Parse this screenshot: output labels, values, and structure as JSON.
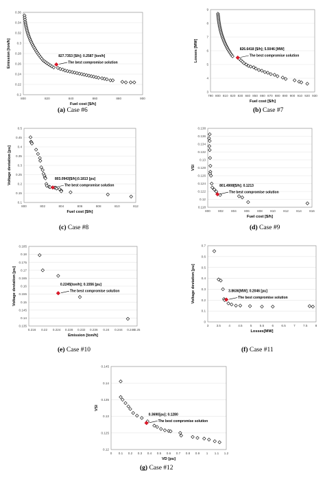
{
  "figures": [
    {
      "letter": "(a)",
      "caption": "Case #6"
    },
    {
      "letter": "(b)",
      "caption": "Case #7"
    },
    {
      "letter": "(c)",
      "caption": "Case #8"
    },
    {
      "letter": "(d)",
      "caption": "Case #9"
    },
    {
      "letter": "(e)",
      "caption": "Case #10"
    },
    {
      "letter": "(f)",
      "caption": "Case #11"
    },
    {
      "letter": "(g)",
      "caption": "Case #12"
    }
  ],
  "chart_data": [
    {
      "type": "scatter",
      "xlabel": "Fuel cost [$/h]",
      "ylabel": "Emission [ton/h]",
      "xlim": [
        800,
        900
      ],
      "ylim": [
        0.2,
        0.36
      ],
      "xticks": [
        "800",
        "820",
        "840",
        "860",
        "880",
        "900"
      ],
      "yticks": [
        "0.2",
        "0.22",
        "0.24",
        "0.26",
        "0.28",
        "0.3",
        "0.32",
        "0.34",
        "0.36"
      ],
      "annotation": "827.7353 [$/h]; 0.2587 [ton/h]",
      "compromise_label": "The best compromise solution",
      "compromise": [
        827.7,
        0.2587
      ],
      "points": [
        [
          801,
          0.354
        ],
        [
          801.2,
          0.35
        ],
        [
          801.4,
          0.346
        ],
        [
          801.6,
          0.342
        ],
        [
          801.8,
          0.339
        ],
        [
          802,
          0.336
        ],
        [
          802.3,
          0.333
        ],
        [
          802.6,
          0.33
        ],
        [
          802.9,
          0.327
        ],
        [
          803.2,
          0.324
        ],
        [
          803.6,
          0.321
        ],
        [
          804,
          0.318
        ],
        [
          804.4,
          0.315
        ],
        [
          804.9,
          0.312
        ],
        [
          805.4,
          0.309
        ],
        [
          805.9,
          0.306
        ],
        [
          806.5,
          0.303
        ],
        [
          807.1,
          0.3
        ],
        [
          807.8,
          0.297
        ],
        [
          808.5,
          0.294
        ],
        [
          809.2,
          0.291
        ],
        [
          810,
          0.288
        ],
        [
          810.8,
          0.285
        ],
        [
          811.6,
          0.282
        ],
        [
          812.5,
          0.279
        ],
        [
          813.4,
          0.276
        ],
        [
          814.4,
          0.273
        ],
        [
          815.4,
          0.27
        ],
        [
          816.5,
          0.267
        ],
        [
          817.6,
          0.265
        ],
        [
          818.8,
          0.263
        ],
        [
          820,
          0.261
        ],
        [
          821.3,
          0.259
        ],
        [
          822.6,
          0.257
        ],
        [
          824,
          0.255
        ],
        [
          825.5,
          0.253
        ],
        [
          829,
          0.252
        ],
        [
          831,
          0.25
        ],
        [
          833,
          0.249
        ],
        [
          835,
          0.247
        ],
        [
          837,
          0.246
        ],
        [
          839,
          0.245
        ],
        [
          841,
          0.244
        ],
        [
          843,
          0.243
        ],
        [
          845,
          0.242
        ],
        [
          847,
          0.241
        ],
        [
          849,
          0.24
        ],
        [
          851,
          0.239
        ],
        [
          853,
          0.238
        ],
        [
          855,
          0.237
        ],
        [
          857,
          0.236
        ],
        [
          859,
          0.235
        ],
        [
          861,
          0.234
        ],
        [
          863,
          0.233
        ],
        [
          866,
          0.232
        ],
        [
          868,
          0.231
        ],
        [
          870,
          0.23
        ],
        [
          873,
          0.228
        ],
        [
          875,
          0.228
        ],
        [
          883,
          0.225
        ],
        [
          886,
          0.224
        ],
        [
          890,
          0.224
        ],
        [
          893,
          0.224
        ]
      ]
    },
    {
      "type": "scatter",
      "xlabel": "Fuel cost [$/h]",
      "ylabel": "Losses [MW]",
      "xlim": [
        790,
        930
      ],
      "ylim": [
        3,
        9
      ],
      "xticks": [
        "790",
        "800",
        "810",
        "820",
        "830",
        "840",
        "850",
        "860",
        "870",
        "880",
        "890",
        "900",
        "910",
        "920",
        "930"
      ],
      "yticks": [
        "3",
        "4",
        "5",
        "6",
        "7",
        "8",
        "9"
      ],
      "annotation": "826.6418 [$/h]; 5.5046 [MW]",
      "compromise_label": "The best compromise solution",
      "compromise": [
        826.6,
        5.5
      ],
      "points": [
        [
          800,
          8.7
        ],
        [
          800.2,
          8.6
        ],
        [
          800.4,
          8.5
        ],
        [
          800.6,
          8.4
        ],
        [
          800.8,
          8.3
        ],
        [
          801,
          8.2
        ],
        [
          801.3,
          8.1
        ],
        [
          801.6,
          8.0
        ],
        [
          801.9,
          7.9
        ],
        [
          802.2,
          7.8
        ],
        [
          802.6,
          7.7
        ],
        [
          803,
          7.6
        ],
        [
          803.4,
          7.5
        ],
        [
          803.9,
          7.4
        ],
        [
          804.4,
          7.3
        ],
        [
          804.9,
          7.2
        ],
        [
          805.5,
          7.1
        ],
        [
          806.1,
          7.0
        ],
        [
          806.8,
          6.9
        ],
        [
          807.5,
          6.8
        ],
        [
          808.2,
          6.7
        ],
        [
          809,
          6.6
        ],
        [
          809.8,
          6.5
        ],
        [
          810.7,
          6.4
        ],
        [
          811.6,
          6.3
        ],
        [
          812.6,
          6.2
        ],
        [
          813.6,
          6.1
        ],
        [
          814.7,
          6.0
        ],
        [
          815.8,
          5.9
        ],
        [
          817,
          5.8
        ],
        [
          818.3,
          5.7
        ],
        [
          819.6,
          5.6
        ],
        [
          829,
          5.4
        ],
        [
          831,
          5.3
        ],
        [
          833,
          5.2
        ],
        [
          835,
          5.1
        ],
        [
          838,
          5.0
        ],
        [
          841,
          4.9
        ],
        [
          844,
          4.85
        ],
        [
          848,
          4.8
        ],
        [
          851,
          4.7
        ],
        [
          855,
          4.6
        ],
        [
          859,
          4.55
        ],
        [
          863,
          4.45
        ],
        [
          867,
          4.4
        ],
        [
          871,
          4.3
        ],
        [
          876,
          4.25
        ],
        [
          880,
          4.15
        ],
        [
          887,
          4.05
        ],
        [
          891,
          3.95
        ],
        [
          903,
          3.85
        ],
        [
          909,
          3.75
        ],
        [
          912,
          3.7
        ],
        [
          920,
          3.6
        ]
      ]
    },
    {
      "type": "scatter",
      "xlabel": "Fuel cost [$/h]",
      "ylabel": "Voltage deviation [pu]",
      "xlim": [
        800,
        812
      ],
      "ylim": [
        0.1,
        0.5
      ],
      "xticks": [
        "800",
        "802",
        "804",
        "806",
        "808",
        "810",
        "812"
      ],
      "yticks": [
        "0.1",
        "0.15",
        "0.2",
        "0.25",
        "0.3",
        "0.35",
        "0.4",
        "0.45",
        "0.5"
      ],
      "annotation": "803.0943[$/h];0.1813 [pu]",
      "compromise_label": "The best compromise solution",
      "compromise": [
        803.09,
        0.181
      ],
      "points": [
        [
          800.7,
          0.452
        ],
        [
          800.75,
          0.428
        ],
        [
          800.8,
          0.425
        ],
        [
          800.85,
          0.418
        ],
        [
          801.3,
          0.385
        ],
        [
          801.5,
          0.362
        ],
        [
          801.7,
          0.34
        ],
        [
          801.75,
          0.325
        ],
        [
          801.85,
          0.29
        ],
        [
          802,
          0.275
        ],
        [
          802.1,
          0.255
        ],
        [
          802.2,
          0.245
        ],
        [
          802.25,
          0.235
        ],
        [
          802.3,
          0.23
        ],
        [
          802.4,
          0.2
        ],
        [
          802.45,
          0.19
        ],
        [
          802.7,
          0.185
        ],
        [
          802.8,
          0.183
        ],
        [
          803.3,
          0.18
        ],
        [
          803.4,
          0.18
        ],
        [
          803.5,
          0.175
        ],
        [
          803.8,
          0.172
        ],
        [
          804,
          0.165
        ],
        [
          804,
          0.16
        ],
        [
          805,
          0.155
        ],
        [
          809,
          0.143
        ],
        [
          811.5,
          0.132
        ]
      ]
    },
    {
      "type": "scatter",
      "xlabel": "Fuel cost [$/h]",
      "ylabel": "VSI",
      "xlim": [
        800,
        816
      ],
      "ylim": [
        0.118,
        0.138
      ],
      "xticks": [
        "800",
        "802",
        "804",
        "806",
        "808",
        "810",
        "812",
        "814",
        "816"
      ],
      "yticks": [
        "0.118",
        "0.12",
        "0.122",
        "0.124",
        "0.126",
        "0.128",
        "0.13",
        "0.132",
        "0.134",
        "0.136",
        "0.138"
      ],
      "annotation": "801.4908[$/h]; 0.1213",
      "compromise_label": "The best compromise solution",
      "compromise": [
        801.49,
        0.1213
      ],
      "points": [
        [
          800.3,
          0.1365
        ],
        [
          800.2,
          0.1355
        ],
        [
          800.3,
          0.1348
        ],
        [
          800.25,
          0.1335
        ],
        [
          800.3,
          0.1325
        ],
        [
          800.35,
          0.1305
        ],
        [
          800.4,
          0.1285
        ],
        [
          800.4,
          0.127
        ],
        [
          800.35,
          0.1265
        ],
        [
          800.5,
          0.126
        ],
        [
          800.6,
          0.124
        ],
        [
          800.7,
          0.123
        ],
        [
          801,
          0.1225
        ],
        [
          801.3,
          0.122
        ],
        [
          801.9,
          0.1211
        ],
        [
          804.8,
          0.1208
        ],
        [
          805.3,
          0.1205
        ],
        [
          806.2,
          0.1193
        ],
        [
          815.3,
          0.119
        ]
      ]
    },
    {
      "type": "scatter",
      "xlabel": "Emission [ton/h]",
      "ylabel": "Voltage deviation [pu]",
      "xlim": [
        0.215,
        0.25
      ],
      "ylim": [
        0.135,
        0.185
      ],
      "xticks": [
        "0.216",
        "0.22",
        "0.224",
        "0.228",
        "0.232",
        "0.236",
        "0.24",
        "0.244",
        "0.248",
        "0.25"
      ],
      "yticks": [
        "0.135",
        "0.14",
        "0.145",
        "0.15",
        "0.155",
        "0.16",
        "0.165",
        "0.17",
        "0.175",
        "0.18",
        "0.185"
      ],
      "annotation": "0.2245[ton/h]; 0.1556 [pu]",
      "compromise_label": "The best compromise solution",
      "compromise": [
        0.2245,
        0.1556
      ],
      "points": [
        [
          0.2185,
          0.1795
        ],
        [
          0.2195,
          0.17
        ],
        [
          0.2245,
          0.1665
        ],
        [
          0.2315,
          0.1532
        ],
        [
          0.247,
          0.1395
        ]
      ]
    },
    {
      "type": "scatter",
      "xlabel": "Losses[MW]",
      "ylabel": "Voltage deviation [pu]",
      "xlim": [
        3,
        8
      ],
      "ylim": [
        0,
        0.7
      ],
      "xticks": [
        "3",
        "3.5",
        "4",
        "4.5",
        "5",
        "5.5",
        "6",
        "6.5",
        "7",
        "7.5",
        "8"
      ],
      "yticks": [
        "0",
        "0.1",
        "0.2",
        "0.3",
        "0.4",
        "0.5",
        "0.6",
        "0.7"
      ],
      "annotation": "3.8636[MW]; 0.2046 [pu]",
      "compromise_label": "The best compromise solution",
      "compromise": [
        3.86,
        0.2046
      ],
      "points": [
        [
          3.3,
          0.65
        ],
        [
          3.5,
          0.39
        ],
        [
          3.6,
          0.38
        ],
        [
          3.7,
          0.3
        ],
        [
          3.75,
          0.21
        ],
        [
          3.78,
          0.2
        ],
        [
          3.95,
          0.17
        ],
        [
          4.1,
          0.16
        ],
        [
          4.3,
          0.15
        ],
        [
          4.5,
          0.15
        ],
        [
          4.95,
          0.145
        ],
        [
          5.5,
          0.14
        ],
        [
          6,
          0.14
        ],
        [
          7.7,
          0.145
        ],
        [
          7.85,
          0.14
        ]
      ]
    },
    {
      "type": "scatter",
      "xlabel": "VD [pu]",
      "ylabel": "VSI",
      "xlim": [
        0,
        1.2
      ],
      "ylim": [
        0.12,
        0.145
      ],
      "xticks": [
        "0",
        "0.1",
        "0.2",
        "0.3",
        "0.4",
        "0.5",
        "0.6",
        "0.7",
        "0.8",
        "0.9",
        "1",
        "1.1",
        "1.2"
      ],
      "yticks": [
        "0.12",
        "0.125",
        "0.13",
        "0.135",
        "0.14",
        "0.145"
      ],
      "annotation": "0.3690[pu]; 0.1280",
      "compromise_label": "The best compromise solution",
      "compromise": [
        0.369,
        0.128
      ],
      "points": [
        [
          0.1,
          0.1405
        ],
        [
          0.1,
          0.1358
        ],
        [
          0.12,
          0.135
        ],
        [
          0.15,
          0.134
        ],
        [
          0.18,
          0.133
        ],
        [
          0.2,
          0.1322
        ],
        [
          0.23,
          0.131
        ],
        [
          0.27,
          0.1302
        ],
        [
          0.32,
          0.1295
        ],
        [
          0.38,
          0.1285
        ],
        [
          0.45,
          0.1272
        ],
        [
          0.48,
          0.1268
        ],
        [
          0.52,
          0.1262
        ],
        [
          0.56,
          0.1258
        ],
        [
          0.6,
          0.1256
        ],
        [
          0.62,
          0.1255
        ],
        [
          0.72,
          0.125
        ],
        [
          0.73,
          0.1242
        ],
        [
          0.85,
          0.1238
        ],
        [
          0.9,
          0.1235
        ],
        [
          0.97,
          0.1233
        ],
        [
          1.02,
          0.123
        ],
        [
          1.08,
          0.1225
        ],
        [
          1.13,
          0.1222
        ]
      ]
    }
  ]
}
